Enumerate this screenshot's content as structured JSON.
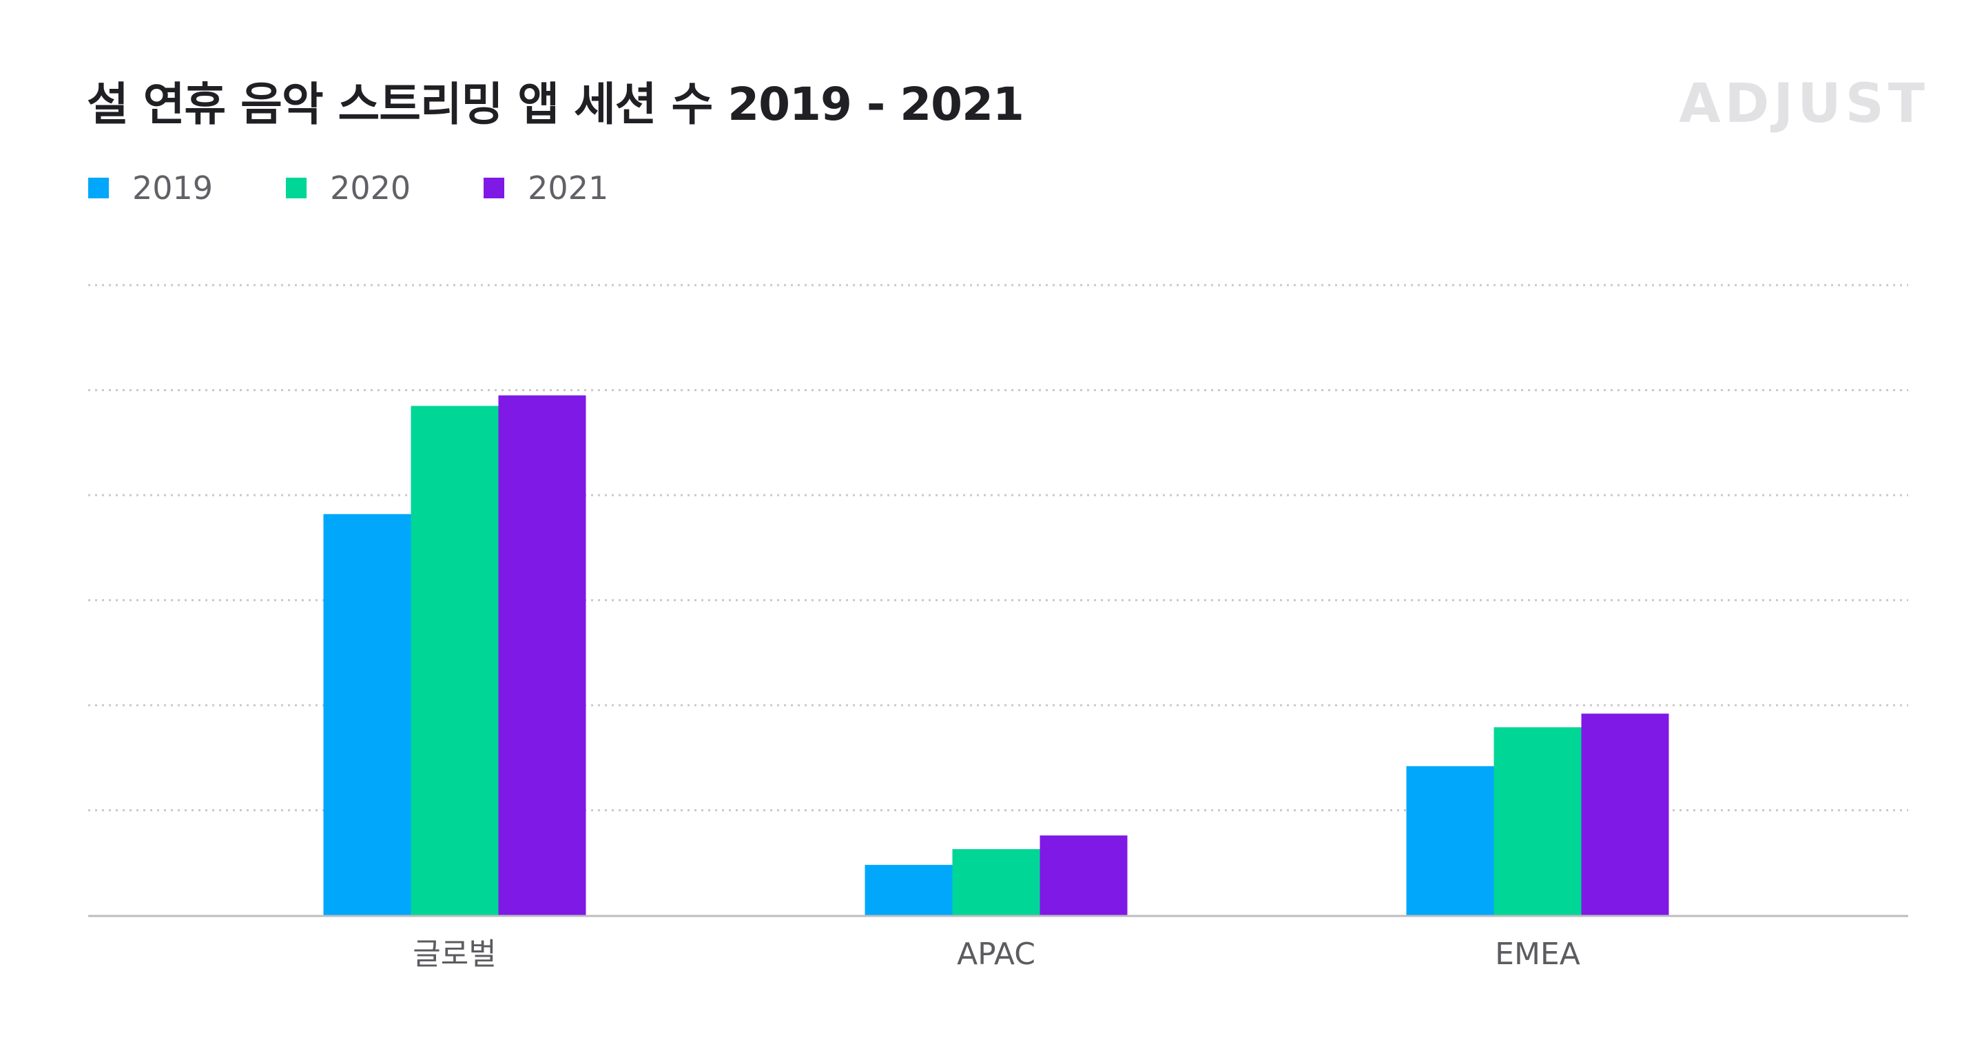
{
  "title": "설 연휴 음악 스트리밍 앱 세션 수 2019 - 2021",
  "brand": "ADJUST",
  "colors": {
    "2019": "#00a7fb",
    "2020": "#00d696",
    "2021": "#7f19e6",
    "grid": "#c9c9cc",
    "axis": "#bdbdc0"
  },
  "legend": [
    "2019",
    "2020",
    "2021"
  ],
  "chart_data": {
    "type": "bar",
    "title": "설 연휴 음악 스트리밍 앱 세션 수 2019 - 2021",
    "xlabel": "",
    "ylabel": "",
    "ylim": [
      0,
      6
    ],
    "grid": true,
    "legend_position": "top-left",
    "categories": [
      "글로벌",
      "APAC",
      "EMEA"
    ],
    "series": [
      {
        "name": "2019",
        "values": [
          3.82,
          0.48,
          1.42
        ]
      },
      {
        "name": "2020",
        "values": [
          4.85,
          0.63,
          1.79
        ]
      },
      {
        "name": "2021",
        "values": [
          4.95,
          0.76,
          1.92
        ]
      }
    ]
  }
}
